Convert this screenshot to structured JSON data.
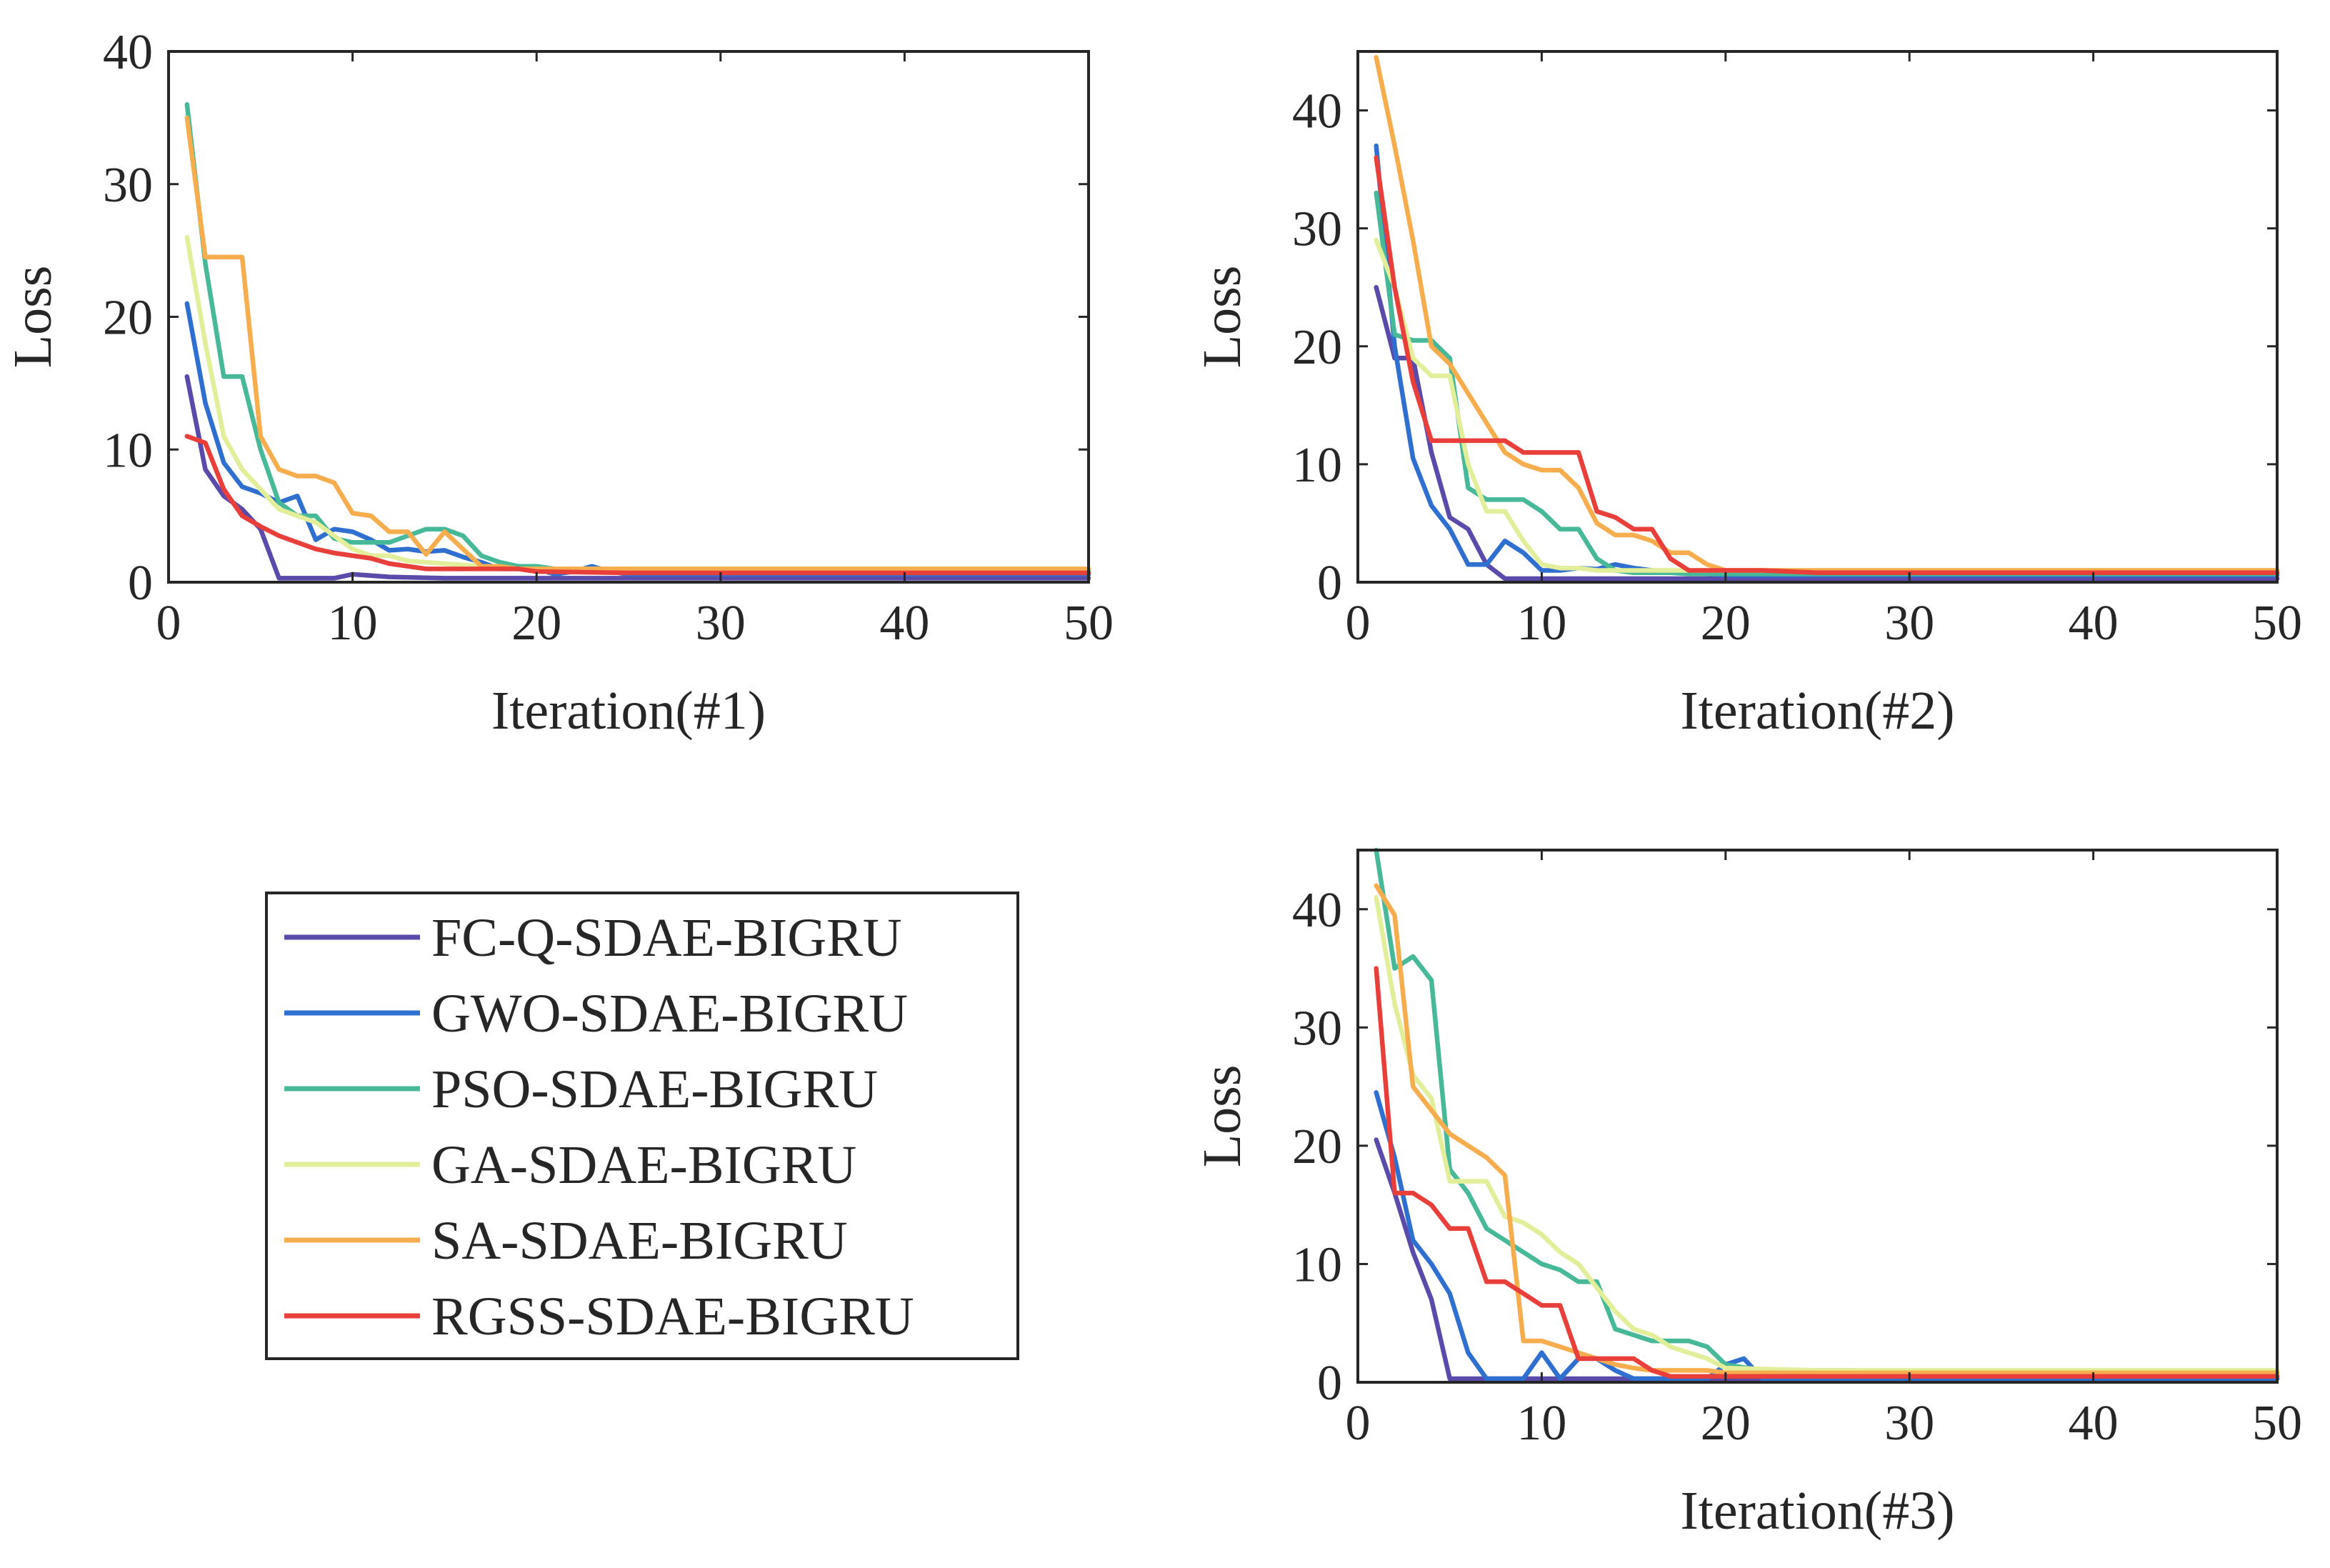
{
  "series_meta": [
    {
      "name": "FC-Q-SDAE-BIGRU",
      "color": "#5a4bab"
    },
    {
      "name": "GWO-SDAE-BIGRU",
      "color": "#2f6fd0"
    },
    {
      "name": "PSO-SDAE-BIGRU",
      "color": "#47b998"
    },
    {
      "name": "GA-SDAE-BIGRU",
      "color": "#e3ee9a"
    },
    {
      "name": "SA-SDAE-BIGRU",
      "color": "#f6ad4e"
    },
    {
      "name": "RGSS-SDAE-BIGRU",
      "color": "#e83f3a"
    }
  ],
  "legend": {
    "placement": "lower-left",
    "entries": [
      "FC-Q-SDAE-BIGRU",
      "GWO-SDAE-BIGRU",
      "PSO-SDAE-BIGRU",
      "GA-SDAE-BIGRU",
      "SA-SDAE-BIGRU",
      "RGSS-SDAE-BIGRU"
    ]
  },
  "chart_data": [
    {
      "type": "line",
      "title": "",
      "xlabel": "Iteration(#1)",
      "ylabel": "Loss",
      "xlim": [
        0,
        50
      ],
      "ylim": [
        0,
        40
      ],
      "xticks": [
        "0",
        "10",
        "20",
        "30",
        "40",
        "50"
      ],
      "yticks": [
        "0",
        "10",
        "20",
        "30",
        "40"
      ],
      "series": [
        {
          "name": "FC-Q-SDAE-BIGRU",
          "x": [
            1,
            2,
            3,
            4,
            5,
            6,
            7,
            8,
            9,
            10,
            12,
            15,
            20,
            25,
            50
          ],
          "values": [
            15.5,
            8.5,
            6.5,
            5.5,
            4.0,
            0.3,
            0.3,
            0.3,
            0.3,
            0.6,
            0.4,
            0.3,
            0.3,
            0.3,
            0.3
          ]
        },
        {
          "name": "GWO-SDAE-BIGRU",
          "x": [
            1,
            2,
            3,
            4,
            5,
            6,
            7,
            8,
            9,
            10,
            11,
            12,
            13,
            14,
            15,
            16,
            17,
            18,
            19,
            20,
            21,
            22,
            23,
            24,
            25,
            50
          ],
          "values": [
            21,
            13.5,
            9,
            7.2,
            6.7,
            6,
            6.5,
            3.2,
            4,
            3.8,
            3.2,
            2.4,
            2.5,
            2.3,
            2.4,
            1.9,
            1.5,
            1,
            1,
            1,
            0.6,
            0.8,
            1.2,
            0.8,
            0.6,
            0.6
          ]
        },
        {
          "name": "PSO-SDAE-BIGRU",
          "x": [
            1,
            2,
            3,
            4,
            5,
            6,
            7,
            8,
            9,
            10,
            11,
            12,
            13,
            14,
            15,
            16,
            17,
            18,
            19,
            20,
            22,
            25,
            50
          ],
          "values": [
            36,
            24,
            15.5,
            15.5,
            10,
            6,
            5,
            5,
            3.3,
            3,
            3,
            3,
            3.5,
            4,
            4,
            3.5,
            2,
            1.5,
            1.2,
            1.2,
            0.8,
            0.8,
            0.8
          ]
        },
        {
          "name": "GA-SDAE-BIGRU",
          "x": [
            1,
            2,
            3,
            4,
            5,
            6,
            7,
            8,
            9,
            10,
            11,
            12,
            13,
            14,
            15,
            16,
            17,
            18,
            19,
            20,
            25,
            50
          ],
          "values": [
            26,
            18,
            11,
            8.5,
            7,
            5.5,
            5,
            4.5,
            3.5,
            2.5,
            2,
            2,
            1.6,
            1.5,
            1.4,
            1.3,
            1.2,
            1.1,
            1,
            1,
            1,
            1
          ]
        },
        {
          "name": "SA-SDAE-BIGRU",
          "x": [
            1,
            2,
            3,
            4,
            5,
            6,
            7,
            8,
            9,
            10,
            11,
            12,
            13,
            14,
            15,
            16,
            17,
            18,
            19,
            20,
            25,
            50
          ],
          "values": [
            35,
            24.5,
            24.5,
            24.5,
            11,
            8.5,
            8,
            8,
            7.5,
            5.2,
            5,
            3.8,
            3.8,
            2.1,
            3.8,
            2.5,
            1.2,
            1.2,
            1,
            1,
            1,
            1
          ]
        },
        {
          "name": "RGSS-SDAE-BIGRU",
          "x": [
            1,
            2,
            3,
            4,
            5,
            6,
            7,
            8,
            9,
            10,
            11,
            12,
            13,
            14,
            15,
            16,
            17,
            18,
            19,
            20,
            25,
            50
          ],
          "values": [
            11,
            10.5,
            7,
            5,
            4.2,
            3.5,
            3,
            2.5,
            2.2,
            2,
            1.8,
            1.4,
            1.2,
            1,
            1,
            1,
            1,
            1,
            1,
            0.8,
            0.7,
            0.7
          ]
        }
      ]
    },
    {
      "type": "line",
      "title": "",
      "xlabel": "Iteration(#2)",
      "ylabel": "Loss",
      "xlim": [
        0,
        50
      ],
      "ylim": [
        0,
        45
      ],
      "xticks": [
        "0",
        "10",
        "20",
        "30",
        "40",
        "50"
      ],
      "yticks": [
        "0",
        "10",
        "20",
        "30",
        "40"
      ],
      "series": [
        {
          "name": "FC-Q-SDAE-BIGRU",
          "x": [
            1,
            2,
            3,
            4,
            5,
            6,
            7,
            8,
            9,
            10,
            15,
            20,
            50
          ],
          "values": [
            25,
            19,
            19,
            11,
            5.5,
            4.5,
            1.5,
            0.3,
            0.3,
            0.3,
            0.3,
            0.3,
            0.3
          ]
        },
        {
          "name": "GWO-SDAE-BIGRU",
          "x": [
            1,
            2,
            3,
            4,
            5,
            6,
            7,
            8,
            9,
            10,
            11,
            12,
            13,
            14,
            15,
            16,
            20,
            50
          ],
          "values": [
            37,
            20,
            10.5,
            6.5,
            4.5,
            1.5,
            1.5,
            3.5,
            2.5,
            1,
            1,
            1.2,
            1.1,
            1.5,
            1.2,
            1,
            0.6,
            0.6
          ]
        },
        {
          "name": "PSO-SDAE-BIGRU",
          "x": [
            1,
            2,
            3,
            4,
            5,
            6,
            7,
            8,
            9,
            10,
            11,
            12,
            13,
            14,
            15,
            16,
            17,
            18,
            19,
            20,
            25,
            50
          ],
          "values": [
            33,
            21,
            20.5,
            20.5,
            19,
            8,
            7,
            7,
            7,
            6,
            4.5,
            4.5,
            2,
            1,
            0.8,
            0.8,
            0.8,
            0.7,
            0.7,
            0.7,
            0.7,
            0.7
          ]
        },
        {
          "name": "GA-SDAE-BIGRU",
          "x": [
            1,
            2,
            3,
            4,
            5,
            6,
            7,
            8,
            9,
            10,
            11,
            12,
            13,
            14,
            15,
            16,
            20,
            50
          ],
          "values": [
            29,
            25,
            19,
            17.5,
            17.5,
            10,
            6,
            6,
            3.5,
            1.5,
            1.2,
            1.2,
            1,
            1,
            1,
            1,
            1,
            1
          ]
        },
        {
          "name": "SA-SDAE-BIGRU",
          "x": [
            1,
            2,
            3,
            4,
            5,
            6,
            7,
            8,
            9,
            10,
            11,
            12,
            13,
            14,
            15,
            16,
            17,
            18,
            19,
            20,
            25,
            50
          ],
          "values": [
            44.5,
            37,
            29,
            20,
            18.5,
            16,
            13.5,
            11,
            10,
            9.5,
            9.5,
            8,
            5,
            4,
            4,
            3.5,
            2.5,
            2.5,
            1.5,
            1,
            1,
            1
          ]
        },
        {
          "name": "RGSS-SDAE-BIGRU",
          "x": [
            1,
            2,
            3,
            4,
            5,
            6,
            7,
            8,
            9,
            10,
            11,
            12,
            13,
            14,
            15,
            16,
            17,
            18,
            19,
            20,
            22,
            25,
            50
          ],
          "values": [
            36,
            25,
            17,
            12,
            12,
            12,
            12,
            12,
            11,
            11,
            11,
            11,
            6,
            5.5,
            4.5,
            4.5,
            2,
            1,
            1,
            1,
            1,
            0.8,
            0.8
          ]
        }
      ]
    },
    {
      "type": "line",
      "title": "",
      "xlabel": "Iteration(#3)",
      "ylabel": "Loss",
      "xlim": [
        0,
        50
      ],
      "ylim": [
        0,
        45
      ],
      "xticks": [
        "0",
        "10",
        "20",
        "30",
        "40",
        "50"
      ],
      "yticks": [
        "0",
        "10",
        "20",
        "30",
        "40"
      ],
      "series": [
        {
          "name": "FC-Q-SDAE-BIGRU",
          "x": [
            1,
            2,
            3,
            4,
            5,
            6,
            10,
            20,
            50
          ],
          "values": [
            20.5,
            16,
            11,
            7,
            0.3,
            0.3,
            0.3,
            0.3,
            0.3
          ]
        },
        {
          "name": "GWO-SDAE-BIGRU",
          "x": [
            1,
            2,
            3,
            4,
            5,
            6,
            7,
            8,
            9,
            10,
            11,
            12,
            13,
            14,
            15,
            16,
            17,
            18,
            19,
            20,
            21,
            22,
            25,
            50
          ],
          "values": [
            24.5,
            19,
            12,
            10,
            7.5,
            2.5,
            0.3,
            0.3,
            0.3,
            2.5,
            0.3,
            2,
            2,
            1,
            0.3,
            0.3,
            0.3,
            0.3,
            0.3,
            1.5,
            2,
            0.3,
            0.3,
            0.3
          ]
        },
        {
          "name": "PSO-SDAE-BIGRU",
          "x": [
            1,
            2,
            3,
            4,
            5,
            6,
            7,
            8,
            9,
            10,
            11,
            12,
            13,
            14,
            15,
            16,
            17,
            18,
            19,
            20,
            22,
            25,
            27,
            30,
            50
          ],
          "values": [
            45,
            35,
            36,
            34,
            18,
            16,
            13,
            12,
            11,
            10,
            9.5,
            8.5,
            8.5,
            4.5,
            4,
            3.5,
            3.5,
            3.5,
            3,
            1.5,
            1,
            1,
            1,
            0.8,
            0.8
          ]
        },
        {
          "name": "GA-SDAE-BIGRU",
          "x": [
            1,
            2,
            3,
            4,
            5,
            6,
            7,
            8,
            9,
            10,
            11,
            12,
            13,
            14,
            15,
            16,
            17,
            18,
            19,
            20,
            25,
            50
          ],
          "values": [
            41,
            32,
            26,
            24,
            17,
            17,
            17,
            14,
            13.5,
            12.5,
            11,
            10,
            8,
            6,
            4.5,
            4,
            3,
            2.5,
            2,
            1.2,
            1,
            1
          ]
        },
        {
          "name": "SA-SDAE-BIGRU",
          "x": [
            1,
            2,
            3,
            4,
            5,
            6,
            7,
            8,
            9,
            10,
            11,
            12,
            13,
            14,
            15,
            16,
            17,
            18,
            19,
            20,
            25,
            50
          ],
          "values": [
            42,
            39.5,
            25,
            23,
            21,
            20,
            19,
            17.5,
            3.5,
            3.5,
            3,
            2.5,
            2,
            1.5,
            1.2,
            1,
            1,
            1,
            1,
            0.8,
            0.8,
            0.8
          ]
        },
        {
          "name": "RGSS-SDAE-BIGRU",
          "x": [
            1,
            2,
            3,
            4,
            5,
            6,
            7,
            8,
            9,
            10,
            11,
            12,
            13,
            14,
            15,
            16,
            17,
            18,
            19,
            20,
            25,
            50
          ],
          "values": [
            35,
            16,
            16,
            15,
            13,
            13,
            8.5,
            8.5,
            7.5,
            6.5,
            6.5,
            2,
            2,
            2,
            2,
            1,
            0.5,
            0.5,
            0.5,
            0.5,
            0.5,
            0.5
          ]
        }
      ]
    }
  ]
}
